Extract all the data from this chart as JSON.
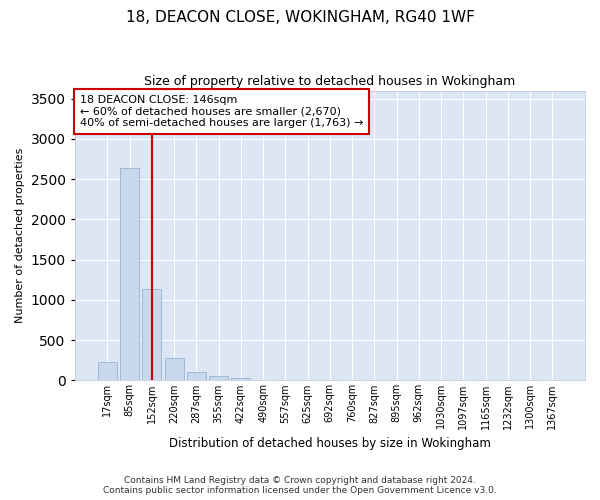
{
  "title1": "18, DEACON CLOSE, WOKINGHAM, RG40 1WF",
  "title2": "Size of property relative to detached houses in Wokingham",
  "xlabel": "Distribution of detached houses by size in Wokingham",
  "ylabel": "Number of detached properties",
  "bar_color": "#c9d9ec",
  "bar_edge_color": "#a0b8d8",
  "annotation_line_color": "#cc0000",
  "annotation_box_color": "#cc0000",
  "background_color": "#ffffff",
  "plot_bg_color": "#dce6f5",
  "grid_color": "#ffffff",
  "categories": [
    "17sqm",
    "85sqm",
    "152sqm",
    "220sqm",
    "287sqm",
    "355sqm",
    "422sqm",
    "490sqm",
    "557sqm",
    "625sqm",
    "692sqm",
    "760sqm",
    "827sqm",
    "895sqm",
    "962sqm",
    "1030sqm",
    "1097sqm",
    "1165sqm",
    "1232sqm",
    "1300sqm",
    "1367sqm"
  ],
  "values": [
    230,
    2640,
    1130,
    280,
    100,
    50,
    30,
    0,
    0,
    0,
    0,
    0,
    0,
    0,
    0,
    0,
    0,
    0,
    0,
    0,
    0
  ],
  "ylim": [
    0,
    3600
  ],
  "yticks": [
    0,
    500,
    1000,
    1500,
    2000,
    2500,
    3000,
    3500
  ],
  "annotation_text": "18 DEACON CLOSE: 146sqm\n← 60% of detached houses are smaller (2,670)\n40% of semi-detached houses are larger (1,763) →",
  "vline_x_index": 2,
  "footnote1": "Contains HM Land Registry data © Crown copyright and database right 2024.",
  "footnote2": "Contains public sector information licensed under the Open Government Licence v3.0."
}
